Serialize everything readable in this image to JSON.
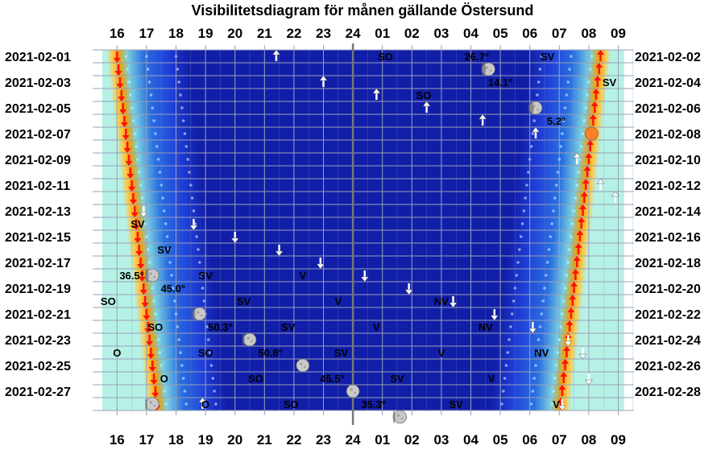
{
  "chart_data": {
    "type": "visibility-diagram",
    "title": "Visibilitetsdiagram för månen gällande Östersund",
    "hour_labels": [
      "16",
      "17",
      "18",
      "19",
      "20",
      "21",
      "22",
      "23",
      "24",
      "01",
      "02",
      "03",
      "04",
      "05",
      "06",
      "07",
      "08",
      "09"
    ],
    "left_dates": [
      "2021-02-01",
      "2021-02-03",
      "2021-02-05",
      "2021-02-07",
      "2021-02-09",
      "2021-02-11",
      "2021-02-13",
      "2021-02-15",
      "2021-02-17",
      "2021-02-19",
      "2021-02-21",
      "2021-02-23",
      "2021-02-25",
      "2021-02-27"
    ],
    "right_dates": [
      "2021-02-02",
      "2021-02-04",
      "2021-02-06",
      "2021-02-08",
      "2021-02-10",
      "2021-02-12",
      "2021-02-14",
      "2021-02-16",
      "2021-02-18",
      "2021-02-20",
      "2021-02-22",
      "2021-02-24",
      "2021-02-26",
      "2021-02-28"
    ],
    "days": 28,
    "sunset_hours": [
      16.0,
      16.05,
      16.1,
      16.15,
      16.2,
      16.25,
      16.3,
      16.35,
      16.4,
      16.45,
      16.5,
      16.55,
      16.6,
      16.65,
      16.7,
      16.75,
      16.8,
      16.85,
      16.9,
      16.95,
      17.0,
      17.05,
      17.1,
      17.15,
      17.2,
      17.25,
      17.3,
      17.35
    ],
    "sunrise_hours": [
      32.4,
      32.35,
      32.3,
      32.25,
      32.2,
      32.15,
      32.1,
      32.05,
      32.0,
      31.95,
      31.9,
      31.85,
      31.8,
      31.75,
      31.7,
      31.65,
      31.6,
      31.55,
      31.5,
      31.45,
      31.4,
      31.35,
      31.3,
      31.25,
      31.2,
      31.15,
      31.1,
      31.05
    ],
    "moon_events": [
      {
        "day": 1,
        "hour": 21.4,
        "type": "rise",
        "dir": "O"
      },
      {
        "day": 1,
        "hour": 25.1,
        "type": "label",
        "dir": "SO"
      },
      {
        "day": 1,
        "hour": 28.2,
        "type": "label",
        "alt": "26.7°"
      },
      {
        "day": 1,
        "hour": 30.6,
        "type": "label",
        "dir": "SV"
      },
      {
        "day": 2,
        "hour": 28.6,
        "type": "moon",
        "phase": 0.55
      },
      {
        "day": 3,
        "hour": 23.0,
        "type": "rise"
      },
      {
        "day": 3,
        "hour": 29.0,
        "type": "label",
        "alt": "14.1°"
      },
      {
        "day": 3,
        "hour": 32.7,
        "type": "label",
        "dir": "SV"
      },
      {
        "day": 4,
        "hour": 24.8,
        "type": "rise"
      },
      {
        "day": 4,
        "hour": 26.4,
        "type": "label",
        "dir": "SO"
      },
      {
        "day": 5,
        "hour": 26.5,
        "type": "rise"
      },
      {
        "day": 5,
        "hour": 30.2,
        "type": "moon",
        "phase": 0.4
      },
      {
        "day": 6,
        "hour": 28.4,
        "type": "rise"
      },
      {
        "day": 6,
        "hour": 30.9,
        "type": "label",
        "alt": "5.2°"
      },
      {
        "day": 7,
        "hour": 30.2,
        "type": "rise"
      },
      {
        "day": 7,
        "hour": 32.1,
        "type": "moon",
        "phase": 0.2,
        "color": "#ff7f27"
      },
      {
        "day": 9,
        "hour": 31.6,
        "type": "rise"
      },
      {
        "day": 11,
        "hour": 32.4,
        "type": "rise"
      },
      {
        "day": 12,
        "hour": 32.9,
        "type": "rise"
      },
      {
        "day": 13,
        "hour": 16.9,
        "type": "set"
      },
      {
        "day": 14,
        "hour": 16.7,
        "type": "label",
        "dir": "SV"
      },
      {
        "day": 14,
        "hour": 18.6,
        "type": "set"
      },
      {
        "day": 15,
        "hour": 20.0,
        "type": "set"
      },
      {
        "day": 16,
        "hour": 17.6,
        "type": "label",
        "dir": "SV"
      },
      {
        "day": 16,
        "hour": 21.5,
        "type": "set"
      },
      {
        "day": 17,
        "hour": 22.9,
        "type": "set"
      },
      {
        "day": 18,
        "hour": 16.5,
        "type": "label",
        "alt": "36.5°"
      },
      {
        "day": 18,
        "hour": 19.0,
        "type": "label",
        "dir": "SV"
      },
      {
        "day": 18,
        "hour": 22.3,
        "type": "label",
        "dir": "V"
      },
      {
        "day": 18,
        "hour": 24.4,
        "type": "set"
      },
      {
        "day": 18,
        "hour": 17.2,
        "type": "moon",
        "phase": 0.7
      },
      {
        "day": 19,
        "hour": 25.9,
        "type": "set"
      },
      {
        "day": 19,
        "hour": 17.9,
        "type": "label",
        "alt": "45.0°"
      },
      {
        "day": 20,
        "hour": 15.7,
        "type": "label",
        "dir": "SO"
      },
      {
        "day": 20,
        "hour": 20.3,
        "type": "label",
        "dir": "SV"
      },
      {
        "day": 20,
        "hour": 23.5,
        "type": "label",
        "dir": "V"
      },
      {
        "day": 20,
        "hour": 27.0,
        "type": "label",
        "dir": "NV"
      },
      {
        "day": 20,
        "hour": 27.4,
        "type": "set"
      },
      {
        "day": 21,
        "hour": 18.8,
        "type": "moon",
        "phase": 0.8
      },
      {
        "day": 21,
        "hour": 28.8,
        "type": "set"
      },
      {
        "day": 22,
        "hour": 17.3,
        "type": "label",
        "dir": "SO"
      },
      {
        "day": 22,
        "hour": 19.5,
        "type": "label",
        "alt": "50.3°"
      },
      {
        "day": 22,
        "hour": 21.8,
        "type": "label",
        "dir": "SV"
      },
      {
        "day": 22,
        "hour": 24.8,
        "type": "label",
        "dir": "V"
      },
      {
        "day": 22,
        "hour": 28.5,
        "type": "label",
        "dir": "NV"
      },
      {
        "day": 22,
        "hour": 30.1,
        "type": "set"
      },
      {
        "day": 23,
        "hour": 20.5,
        "type": "moon",
        "phase": 0.9
      },
      {
        "day": 23,
        "hour": 31.3,
        "type": "set"
      },
      {
        "day": 24,
        "hour": 16.0,
        "type": "label",
        "dir": "O"
      },
      {
        "day": 24,
        "hour": 19.0,
        "type": "label",
        "dir": "SO"
      },
      {
        "day": 24,
        "hour": 21.2,
        "type": "label",
        "alt": "50.8°"
      },
      {
        "day": 24,
        "hour": 23.6,
        "type": "label",
        "dir": "SV"
      },
      {
        "day": 24,
        "hour": 27.0,
        "type": "label",
        "dir": "V"
      },
      {
        "day": 24,
        "hour": 30.4,
        "type": "label",
        "dir": "NV"
      },
      {
        "day": 24,
        "hour": 31.8,
        "type": "set"
      },
      {
        "day": 25,
        "hour": 22.3,
        "type": "moon",
        "phase": 0.97
      },
      {
        "day": 26,
        "hour": 17.6,
        "type": "label",
        "dir": "O"
      },
      {
        "day": 26,
        "hour": 20.7,
        "type": "label",
        "dir": "SO"
      },
      {
        "day": 26,
        "hour": 23.3,
        "type": "label",
        "alt": "45.5°"
      },
      {
        "day": 26,
        "hour": 25.5,
        "type": "label",
        "dir": "SV"
      },
      {
        "day": 26,
        "hour": 28.7,
        "type": "label",
        "dir": "V"
      },
      {
        "day": 26,
        "hour": 32.0,
        "type": "set"
      },
      {
        "day": 27,
        "hour": 24.0,
        "type": "moon",
        "phase": 1.0
      },
      {
        "day": 28,
        "hour": 17.2,
        "type": "moon",
        "phase": 0.95
      },
      {
        "day": 28,
        "hour": 18.9,
        "type": "rise"
      },
      {
        "day": 28,
        "hour": 19.0,
        "type": "label",
        "dir": "O"
      },
      {
        "day": 28,
        "hour": 21.9,
        "type": "label",
        "dir": "SO"
      },
      {
        "day": 28,
        "hour": 24.7,
        "type": "label",
        "alt": "35.3°"
      },
      {
        "day": 28,
        "hour": 27.5,
        "type": "label",
        "dir": "SV"
      },
      {
        "day": 28,
        "hour": 30.9,
        "type": "label",
        "dir": "V"
      },
      {
        "day": 28,
        "hour": 31.1,
        "type": "set"
      },
      {
        "day": 29,
        "hour": 25.6,
        "type": "moon",
        "phase": 0.9
      }
    ]
  }
}
